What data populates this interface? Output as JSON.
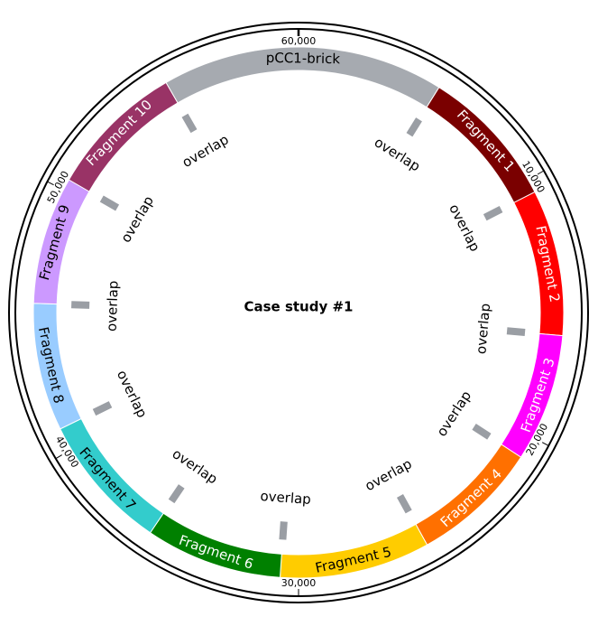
{
  "title": "Case study #1",
  "segments": [
    {
      "label": "pCC1-brick",
      "color": "#a6aab0"
    },
    {
      "label": "Fragment 1",
      "color": "#7a0000"
    },
    {
      "label": "Fragment 2",
      "color": "#ff0000"
    },
    {
      "label": "Fragment 3",
      "color": "#ff00ff"
    },
    {
      "label": "Fragment 4",
      "color": "#ff7000"
    },
    {
      "label": "Fragment 5",
      "color": "#ffcc00"
    },
    {
      "label": "Fragment 6",
      "color": "#008000"
    },
    {
      "label": "Fragment 7",
      "color": "#33cccc"
    },
    {
      "label": "Fragment 8",
      "color": "#99ccff"
    },
    {
      "label": "Fragment 9",
      "color": "#cc99ff"
    },
    {
      "label": "Fragment 10",
      "color": "#993366"
    }
  ],
  "overlaps": [
    "overlap",
    "overlap",
    "overlap",
    "overlap",
    "overlap",
    "overlap",
    "overlap",
    "overlap",
    "overlap",
    "overlap",
    "overlap"
  ],
  "ticks": [
    {
      "value": 10000,
      "label": "10,000"
    },
    {
      "value": 20000,
      "label": "20,000"
    },
    {
      "value": 30000,
      "label": "30,000"
    },
    {
      "value": 40000,
      "label": "40,000"
    },
    {
      "value": 50000,
      "label": "50,000"
    },
    {
      "value": 60000,
      "label": "60,000"
    }
  ]
}
